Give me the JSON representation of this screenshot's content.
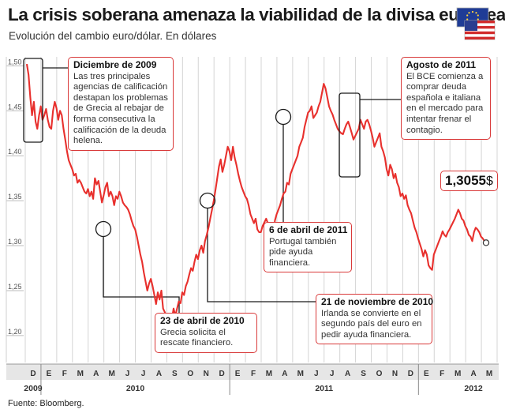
{
  "header": {
    "title": "La crisis soberana amenaza la viabilidad de la divisa europea",
    "subtitle": "Evolución del cambio euro/dólar. En dólares"
  },
  "footer": {
    "source": "Fuente: Bloomberg."
  },
  "flags": {
    "eu": "eu-flag-icon",
    "us": "us-flag-icon"
  },
  "colors": {
    "line": "#e8302d",
    "annotation_border": "#d93a3a",
    "grid": "#d4d4d4",
    "axis_band": "#e6e6e6"
  },
  "chart_data": {
    "type": "line",
    "series": [
      {
        "values": [
          1.502,
          1.49,
          1.465,
          1.445,
          1.46,
          1.438,
          1.43,
          1.445,
          1.455,
          1.44,
          1.445,
          1.452,
          1.44,
          1.432,
          1.43,
          1.45,
          1.46,
          1.453,
          1.44,
          1.45,
          1.445,
          1.43,
          1.418,
          1.405,
          1.395,
          1.39,
          1.385,
          1.378,
          1.38,
          1.37,
          1.373,
          1.37,
          1.365,
          1.36,
          1.358,
          1.363,
          1.355,
          1.36,
          1.352,
          1.375,
          1.368,
          1.372,
          1.36,
          1.348,
          1.356,
          1.365,
          1.37,
          1.355,
          1.36,
          1.355,
          1.345,
          1.355,
          1.352,
          1.36,
          1.355,
          1.348,
          1.345,
          1.343,
          1.34,
          1.335,
          1.328,
          1.322,
          1.318,
          1.31,
          1.3,
          1.29,
          1.282,
          1.27,
          1.26,
          1.25,
          1.258,
          1.263,
          1.255,
          1.245,
          1.235,
          1.248,
          1.24,
          1.25,
          1.23,
          1.226,
          1.215,
          1.205,
          1.195,
          1.218,
          1.23,
          1.222,
          1.23,
          1.238,
          1.236,
          1.248,
          1.245,
          1.255,
          1.26,
          1.268,
          1.275,
          1.272,
          1.282,
          1.29,
          1.285,
          1.295,
          1.3,
          1.292,
          1.305,
          1.312,
          1.32,
          1.33,
          1.34,
          1.35,
          1.362,
          1.375,
          1.388,
          1.396,
          1.382,
          1.39,
          1.4,
          1.41,
          1.405,
          1.395,
          1.41,
          1.398,
          1.39,
          1.38,
          1.372,
          1.365,
          1.36,
          1.355,
          1.352,
          1.345,
          1.335,
          1.33,
          1.325,
          1.33,
          1.318,
          1.315,
          1.315,
          1.322,
          1.326,
          1.33,
          1.325,
          1.318,
          1.315,
          1.31,
          1.328,
          1.335,
          1.34,
          1.345,
          1.352,
          1.358,
          1.36,
          1.37,
          1.368,
          1.38,
          1.385,
          1.39,
          1.395,
          1.4,
          1.41,
          1.415,
          1.42,
          1.432,
          1.44,
          1.448,
          1.45,
          1.455,
          1.442,
          1.445,
          1.448,
          1.455,
          1.46,
          1.47,
          1.48,
          1.475,
          1.465,
          1.455,
          1.45,
          1.446,
          1.44,
          1.435,
          1.43,
          1.427,
          1.425,
          1.424,
          1.43,
          1.435,
          1.438,
          1.432,
          1.425,
          1.418,
          1.422,
          1.426,
          1.43,
          1.44,
          1.435,
          1.43,
          1.438,
          1.44,
          1.435,
          1.428,
          1.42,
          1.41,
          1.415,
          1.42,
          1.425,
          1.41,
          1.405,
          1.398,
          1.385,
          1.378,
          1.39,
          1.385,
          1.375,
          1.38,
          1.37,
          1.365,
          1.355,
          1.358,
          1.352,
          1.356,
          1.345,
          1.34,
          1.336,
          1.328,
          1.32,
          1.315,
          1.308,
          1.302,
          1.296,
          1.288,
          1.295,
          1.29,
          1.278,
          1.275,
          1.273,
          1.29,
          1.295,
          1.3,
          1.305,
          1.31,
          1.316,
          1.312,
          1.31,
          1.315,
          1.318,
          1.322,
          1.326,
          1.33,
          1.335,
          1.34,
          1.336,
          1.33,
          1.328,
          1.322,
          1.318,
          1.312,
          1.31,
          1.305,
          1.315,
          1.32,
          1.318,
          1.315,
          1.31,
          1.308,
          1.305
        ]
      }
    ],
    "ylim": [
      1.17,
      1.51
    ],
    "yticks": [
      "1,50",
      "1,45",
      "1,40",
      "1,35",
      "1,30",
      "1,25",
      "1,20"
    ],
    "ytick_values": [
      1.5,
      1.45,
      1.4,
      1.35,
      1.3,
      1.25,
      1.2
    ],
    "months": [
      "D",
      "E",
      "F",
      "M",
      "A",
      "M",
      "J",
      "J",
      "A",
      "S",
      "O",
      "N",
      "D",
      "E",
      "F",
      "M",
      "A",
      "M",
      "J",
      "J",
      "A",
      "S",
      "O",
      "N",
      "D",
      "E",
      "F",
      "M",
      "A",
      "M"
    ],
    "years": [
      {
        "label": "2009",
        "month_index": 0
      },
      {
        "label": "2010",
        "month_index": 6.5
      },
      {
        "label": "2011",
        "month_index": 18.5
      },
      {
        "label": "2012",
        "month_index": 28
      }
    ],
    "grid": true,
    "last_value_label": "1,3055",
    "last_value_unit": "$",
    "annotations": [
      {
        "id": "dic2009",
        "date": "Diciembre de 2009",
        "text": "Las tres principales agencias de calificación destapan los problemas de Grecia al rebajar de forma consecutiva la calificación de la deuda helena."
      },
      {
        "id": "abr2010",
        "date": "23 de abril de 2010",
        "text": "Grecia solicita el rescate financiero."
      },
      {
        "id": "nov2010",
        "date": "21 de noviembre de 2010",
        "text": "Irlanda se convierte en el segundo país del euro en pedir ayuda financiera."
      },
      {
        "id": "abr2011",
        "date": "6 de abril de 2011",
        "text": "Portugal también pide ayuda financiera."
      },
      {
        "id": "ago2011",
        "date": "Agosto de 2011",
        "text": "El BCE comienza a comprar deuda española e italiana en el mercado para intentar frenar el contagio."
      }
    ]
  }
}
